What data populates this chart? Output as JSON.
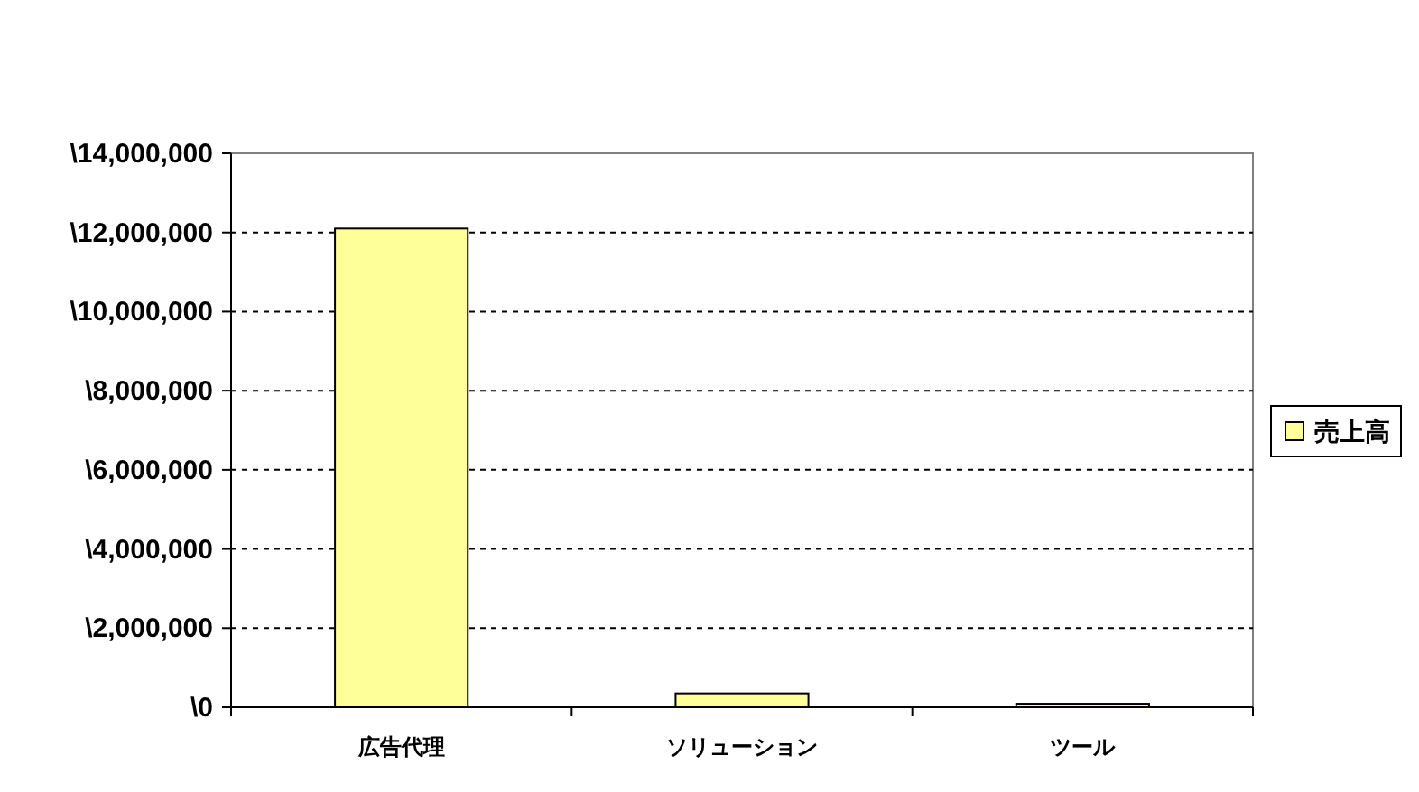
{
  "chart_data": {
    "type": "bar",
    "categories": [
      "広告代理",
      "ソリューション",
      "ツール"
    ],
    "series": [
      {
        "name": "売上高",
        "color": "#ffff99",
        "values": [
          12100000,
          350000,
          90000
        ]
      }
    ],
    "ylim": [
      0,
      14000000
    ],
    "yticks": [
      {
        "value": 0,
        "label": "\\0"
      },
      {
        "value": 2000000,
        "label": "\\2,000,000"
      },
      {
        "value": 4000000,
        "label": "\\4,000,000"
      },
      {
        "value": 6000000,
        "label": "\\6,000,000"
      },
      {
        "value": 8000000,
        "label": "\\8,000,000"
      },
      {
        "value": 10000000,
        "label": "\\10,000,000"
      },
      {
        "value": 12000000,
        "label": "\\12,000,000"
      },
      {
        "value": 14000000,
        "label": "\\14,000,000"
      }
    ],
    "grid": "y",
    "legend": "right"
  }
}
